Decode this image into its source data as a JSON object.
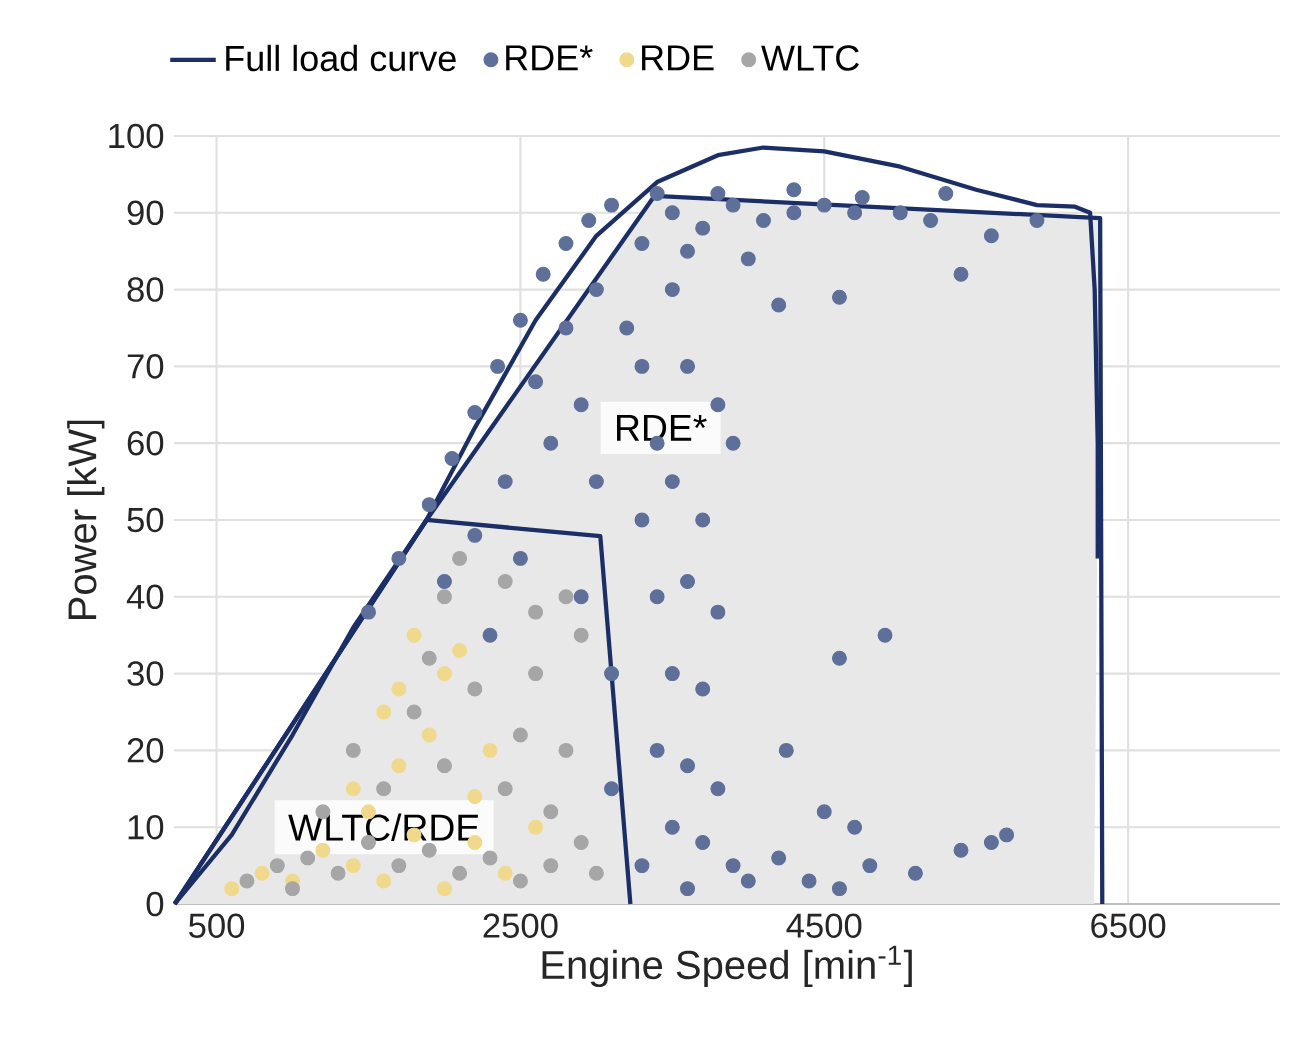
{
  "chart_data": {
    "type": "scatter",
    "xlabel": "Engine Speed [min$^{-1}$]",
    "ylabel": "Power [kW]",
    "xlim": [
      220,
      7500
    ],
    "ylim": [
      0,
      100
    ],
    "xticks": [
      500,
      2500,
      4500,
      6500
    ],
    "yticks": [
      0,
      10,
      20,
      30,
      40,
      50,
      60,
      70,
      80,
      90,
      100
    ],
    "grid": true,
    "legend": "top",
    "annotations": [
      "RDE*",
      "WLTC/RDE"
    ],
    "series": [
      {
        "type": "area",
        "color": "#e8e8e8",
        "x": [
          224,
          1882,
          3382,
          6316,
          6276
        ],
        "values": [
          0,
          50,
          92.2,
          89.3,
          0
        ]
      },
      {
        "name": "Full load curve",
        "type": "line",
        "marker": "none",
        "color": "#1b2f66",
        "x": [
          224,
          600,
          1000,
          1400,
          1882,
          2200,
          2600,
          3000,
          3400,
          3800,
          4100,
          4500,
          5000,
          5500,
          5900,
          6150,
          6250,
          6280,
          6300,
          6300
        ],
        "values": [
          0,
          9,
          22,
          36,
          50,
          62,
          76,
          87,
          94,
          97.5,
          98.5,
          98,
          96,
          93,
          91,
          90.8,
          90,
          80,
          60,
          45
        ]
      },
      {
        "name": "RDE*",
        "marker": "circle",
        "color": "#5e7099",
        "x": [
          1500,
          1700,
          1900,
          2050,
          2200,
          2350,
          2500,
          2650,
          2800,
          2950,
          3100,
          3400,
          3800,
          4300,
          4750,
          5300,
          3500,
          3700,
          3900,
          4100,
          4300,
          4500,
          4700,
          5000,
          5200,
          5600,
          5900,
          4600,
          5400,
          3600,
          3300,
          3000,
          2800,
          3200,
          3500,
          4000,
          4200,
          3300,
          3600,
          3400,
          3800,
          3900,
          3500,
          3300,
          3700,
          3400,
          3600,
          3800,
          3500,
          3700,
          3400,
          3600,
          3800,
          3500,
          3700,
          3900,
          3300,
          3600,
          4000,
          4200,
          4400,
          4600,
          4800,
          5100,
          5400,
          5600,
          5700,
          4900,
          4600,
          4250,
          4500,
          4700,
          2200,
          2500,
          2000,
          2700,
          2400,
          2900,
          2600,
          3000,
          2900,
          3100,
          3100,
          2300
        ],
        "values": [
          38,
          45,
          52,
          58,
          64,
          70,
          76,
          82,
          86,
          89,
          91,
          92.5,
          92.5,
          93,
          92,
          92.5,
          90,
          88,
          91,
          89,
          90,
          91,
          90,
          90,
          89,
          87,
          89,
          79,
          82,
          85,
          86,
          80,
          75,
          75,
          80,
          84,
          78,
          70,
          70,
          60,
          65,
          60,
          55,
          50,
          50,
          40,
          42,
          38,
          30,
          28,
          20,
          18,
          15,
          10,
          8,
          5,
          5,
          2,
          3,
          6,
          3,
          2,
          5,
          4,
          7,
          8,
          9,
          35,
          32,
          20,
          12,
          10,
          48,
          45,
          42,
          60,
          55,
          65,
          68,
          55,
          40,
          30,
          15,
          35
        ]
      },
      {
        "name": "RDE",
        "marker": "circle",
        "color": "#f0d98c",
        "x": [
          600,
          800,
          1000,
          1200,
          1400,
          1600,
          1800,
          2000,
          2200,
          2400,
          1500,
          1700,
          1900,
          1700,
          2000,
          1800,
          2100,
          1600,
          2300,
          1400,
          2600,
          2200
        ],
        "values": [
          2,
          4,
          3,
          7,
          5,
          3,
          9,
          2,
          8,
          4,
          12,
          18,
          22,
          28,
          30,
          35,
          33,
          25,
          20,
          15,
          10,
          14
        ]
      },
      {
        "name": "WLTC",
        "marker": "circle",
        "color": "#a6a6a6",
        "x": [
          700,
          900,
          1100,
          1300,
          1500,
          1700,
          1900,
          2100,
          2300,
          2500,
          2700,
          2900,
          1200,
          1600,
          2000,
          2400,
          2800,
          1800,
          2200,
          2600,
          2900,
          2000,
          2400,
          1900,
          1400,
          2700,
          3000,
          1000,
          2500,
          2800,
          2100,
          2600
        ],
        "values": [
          3,
          5,
          6,
          4,
          8,
          5,
          7,
          4,
          6,
          3,
          5,
          8,
          12,
          15,
          18,
          15,
          20,
          25,
          28,
          30,
          35,
          40,
          42,
          32,
          20,
          12,
          4,
          2,
          22,
          40,
          45,
          38
        ]
      },
      {
        "type": "line",
        "marker": "none",
        "color": "#1b2f66",
        "x": [
          224,
          1882,
          3382,
          6316,
          6330
        ],
        "values": [
          0,
          50,
          92.2,
          89.3,
          0
        ]
      },
      {
        "type": "line",
        "marker": "none",
        "color": "#1b2f66",
        "x": [
          224,
          1882,
          3026,
          3224
        ],
        "values": [
          0,
          50,
          47.9,
          0
        ]
      }
    ]
  }
}
